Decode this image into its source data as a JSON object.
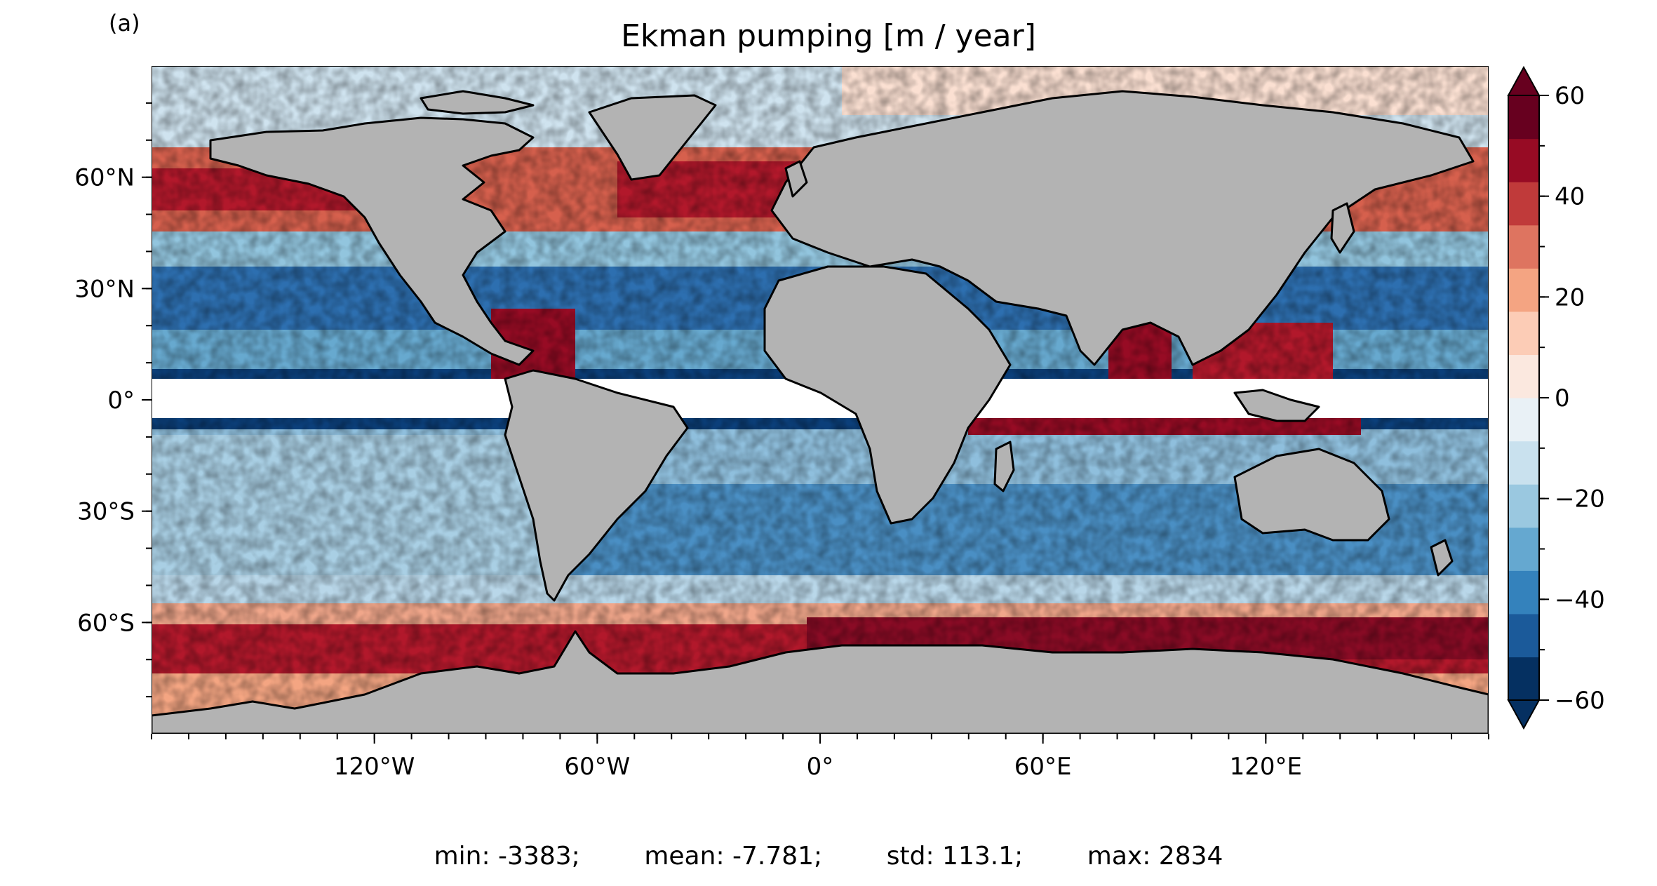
{
  "panel_label": "(a)",
  "title": "Ekman pumping [m / year]",
  "stats": {
    "min": "min: -3383;",
    "mean": "mean: -7.781;",
    "std": "std: 113.1;",
    "max": "max: 2834"
  },
  "colors": {
    "land": "#b3b3b3",
    "coast": "#000000",
    "bins": [
      "#053061",
      "#1b5a9a",
      "#3482bc",
      "#65a8d0",
      "#9ac8e0",
      "#c9e1ee",
      "#e9f1f6",
      "#fbe8df",
      "#fcccb6",
      "#f4a482",
      "#de7460",
      "#c03a3a",
      "#970b24",
      "#67001f"
    ]
  },
  "colorbar": {
    "ticks": [
      60,
      40,
      20,
      0,
      -20,
      -40,
      -60
    ],
    "tick_labels": [
      "60",
      "40",
      "20",
      "0",
      "−20",
      "−40",
      "−60"
    ],
    "range": [
      -60,
      60
    ],
    "extend": "both"
  },
  "axes": {
    "lon_ticks": [
      -120,
      -60,
      0,
      60,
      120
    ],
    "lon_labels": [
      "120°W",
      "60°W",
      "0°",
      "60°E",
      "120°E"
    ],
    "lat_ticks": [
      60,
      30,
      0,
      -30,
      -60
    ],
    "lat_labels": [
      "60°N",
      "30°N",
      "0°",
      "30°S",
      "60°S"
    ],
    "lon_range": [
      -180,
      180
    ],
    "lat_range": [
      -90,
      90
    ],
    "masked_equatorial_band": [
      -5,
      5
    ]
  }
}
